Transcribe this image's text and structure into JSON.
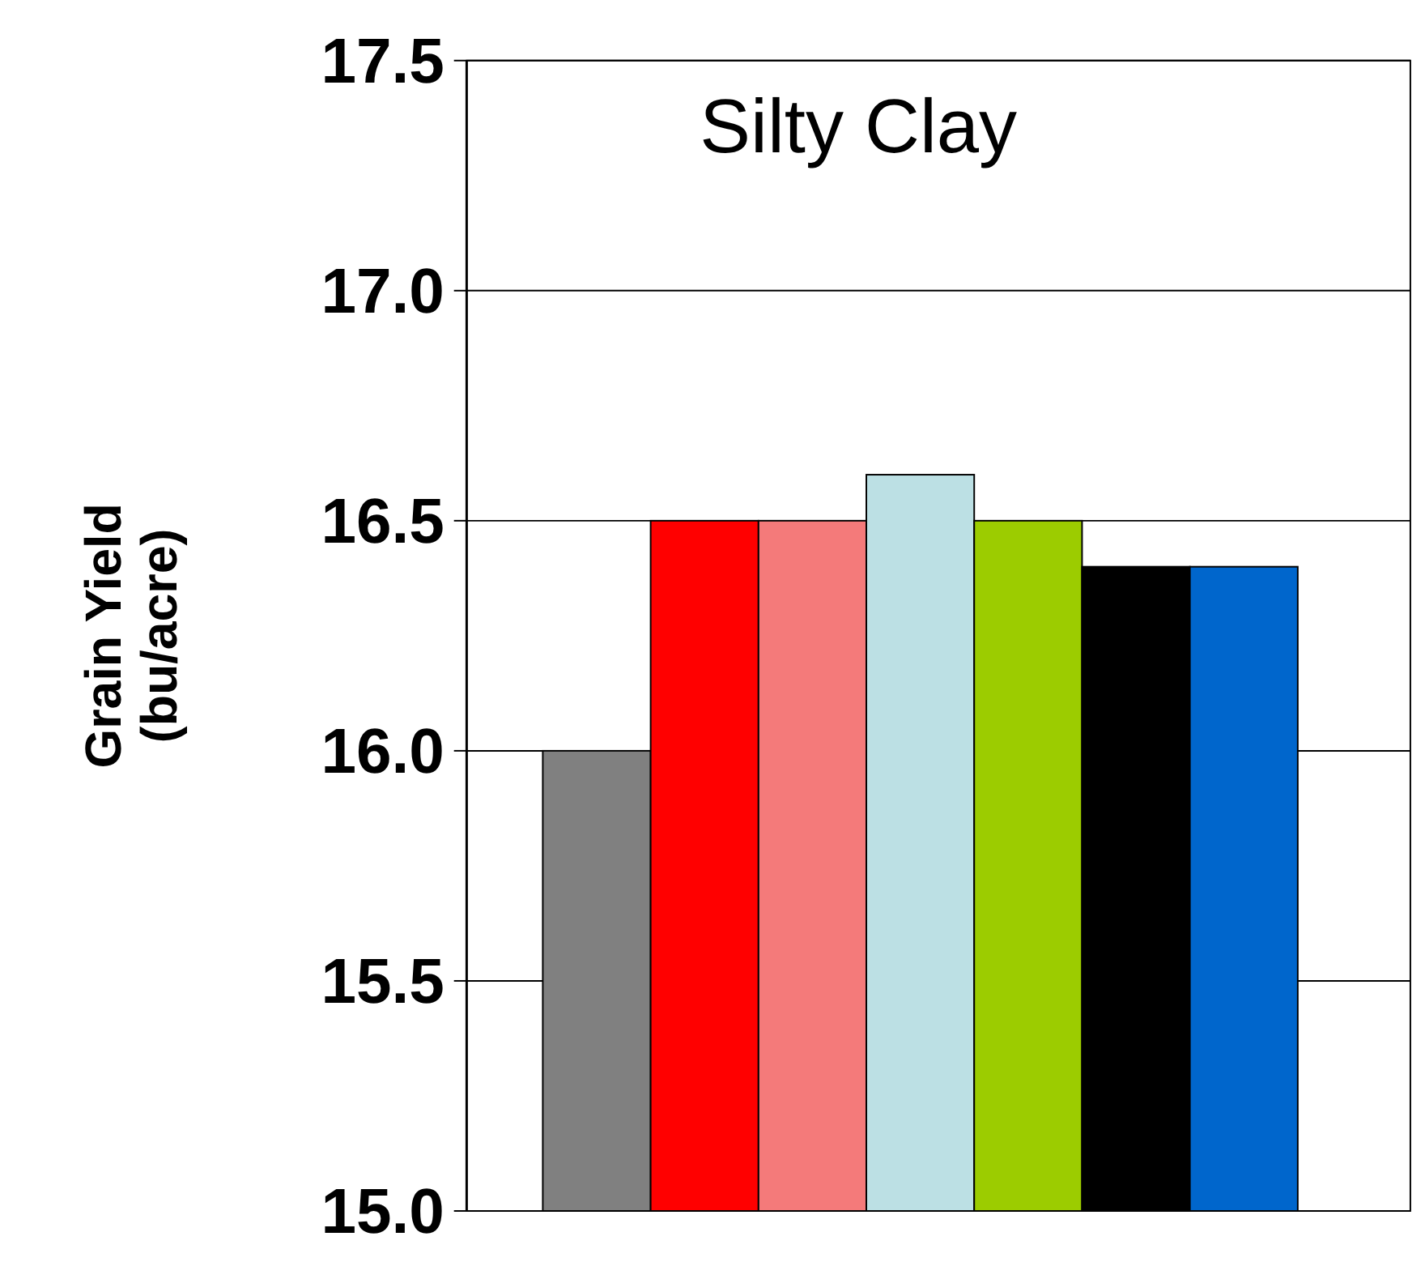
{
  "chart_data": {
    "type": "bar",
    "title": "Silty Clay",
    "ylabel": "Grain Yield (bu/acre)",
    "categories": [
      null,
      null,
      null,
      null,
      null,
      null,
      null
    ],
    "values": [
      16.0,
      16.5,
      16.5,
      16.6,
      16.5,
      16.4,
      16.4
    ],
    "colors": [
      "#808080",
      "#ff0000",
      "#f47a7a",
      "#bce0e4",
      "#9ccc00",
      "#000000",
      "#0066cc"
    ],
    "ylim": [
      15.0,
      17.5
    ],
    "yticks": [
      {
        "value": 15.0,
        "label": "15.0"
      },
      {
        "value": 15.5,
        "label": "15.5"
      },
      {
        "value": 16.0,
        "label": "16.0"
      },
      {
        "value": 16.5,
        "label": "16.5"
      },
      {
        "value": 17.0,
        "label": "17.0"
      },
      {
        "value": 17.5,
        "label": "17.5"
      }
    ],
    "grid": "y"
  }
}
